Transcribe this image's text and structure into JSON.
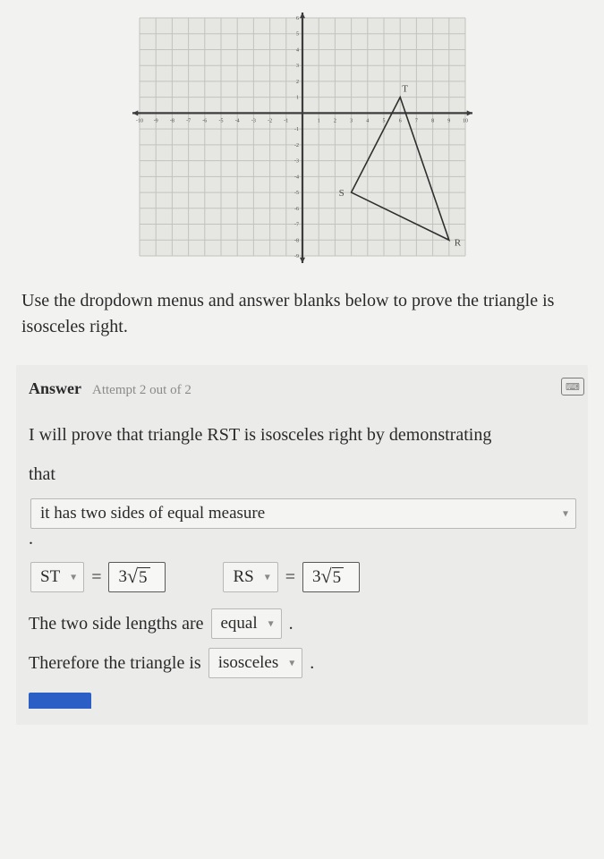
{
  "graph": {
    "xlim": [
      -10,
      10
    ],
    "ylim": [
      -9,
      6
    ],
    "tick_step": 1,
    "axis_color": "#3d3d3d",
    "grid_color": "#c2c2be",
    "bg_color": "#e6e6e2",
    "line_color": "#2f2f2f",
    "label_color": "#4a4a48",
    "label_fontsize": 11,
    "points": {
      "T": {
        "x": 6,
        "y": 1,
        "label": "T"
      },
      "S": {
        "x": 3,
        "y": -5,
        "label": "S"
      },
      "R": {
        "x": 9,
        "y": -8,
        "label": "R"
      }
    }
  },
  "instruction": "Use the dropdown menus and answer blanks below to prove the triangle is isosceles right.",
  "answer": {
    "label": "Answer",
    "attempt": "Attempt 2 out of 2",
    "line1a": "I will prove that triangle RST is isosceles right by demonstrating",
    "line1b": "that",
    "condition": "it has two sides of equal measure",
    "side1": {
      "name": "ST",
      "value_coeff": "3",
      "value_rad": "5"
    },
    "side2": {
      "name": "RS",
      "value_coeff": "3",
      "value_rad": "5"
    },
    "eq": "=",
    "sentence2_pre": "The two side lengths are",
    "sentence2_val": "equal",
    "sentence3_pre": "Therefore the triangle is",
    "sentence3_val": "isosceles"
  }
}
